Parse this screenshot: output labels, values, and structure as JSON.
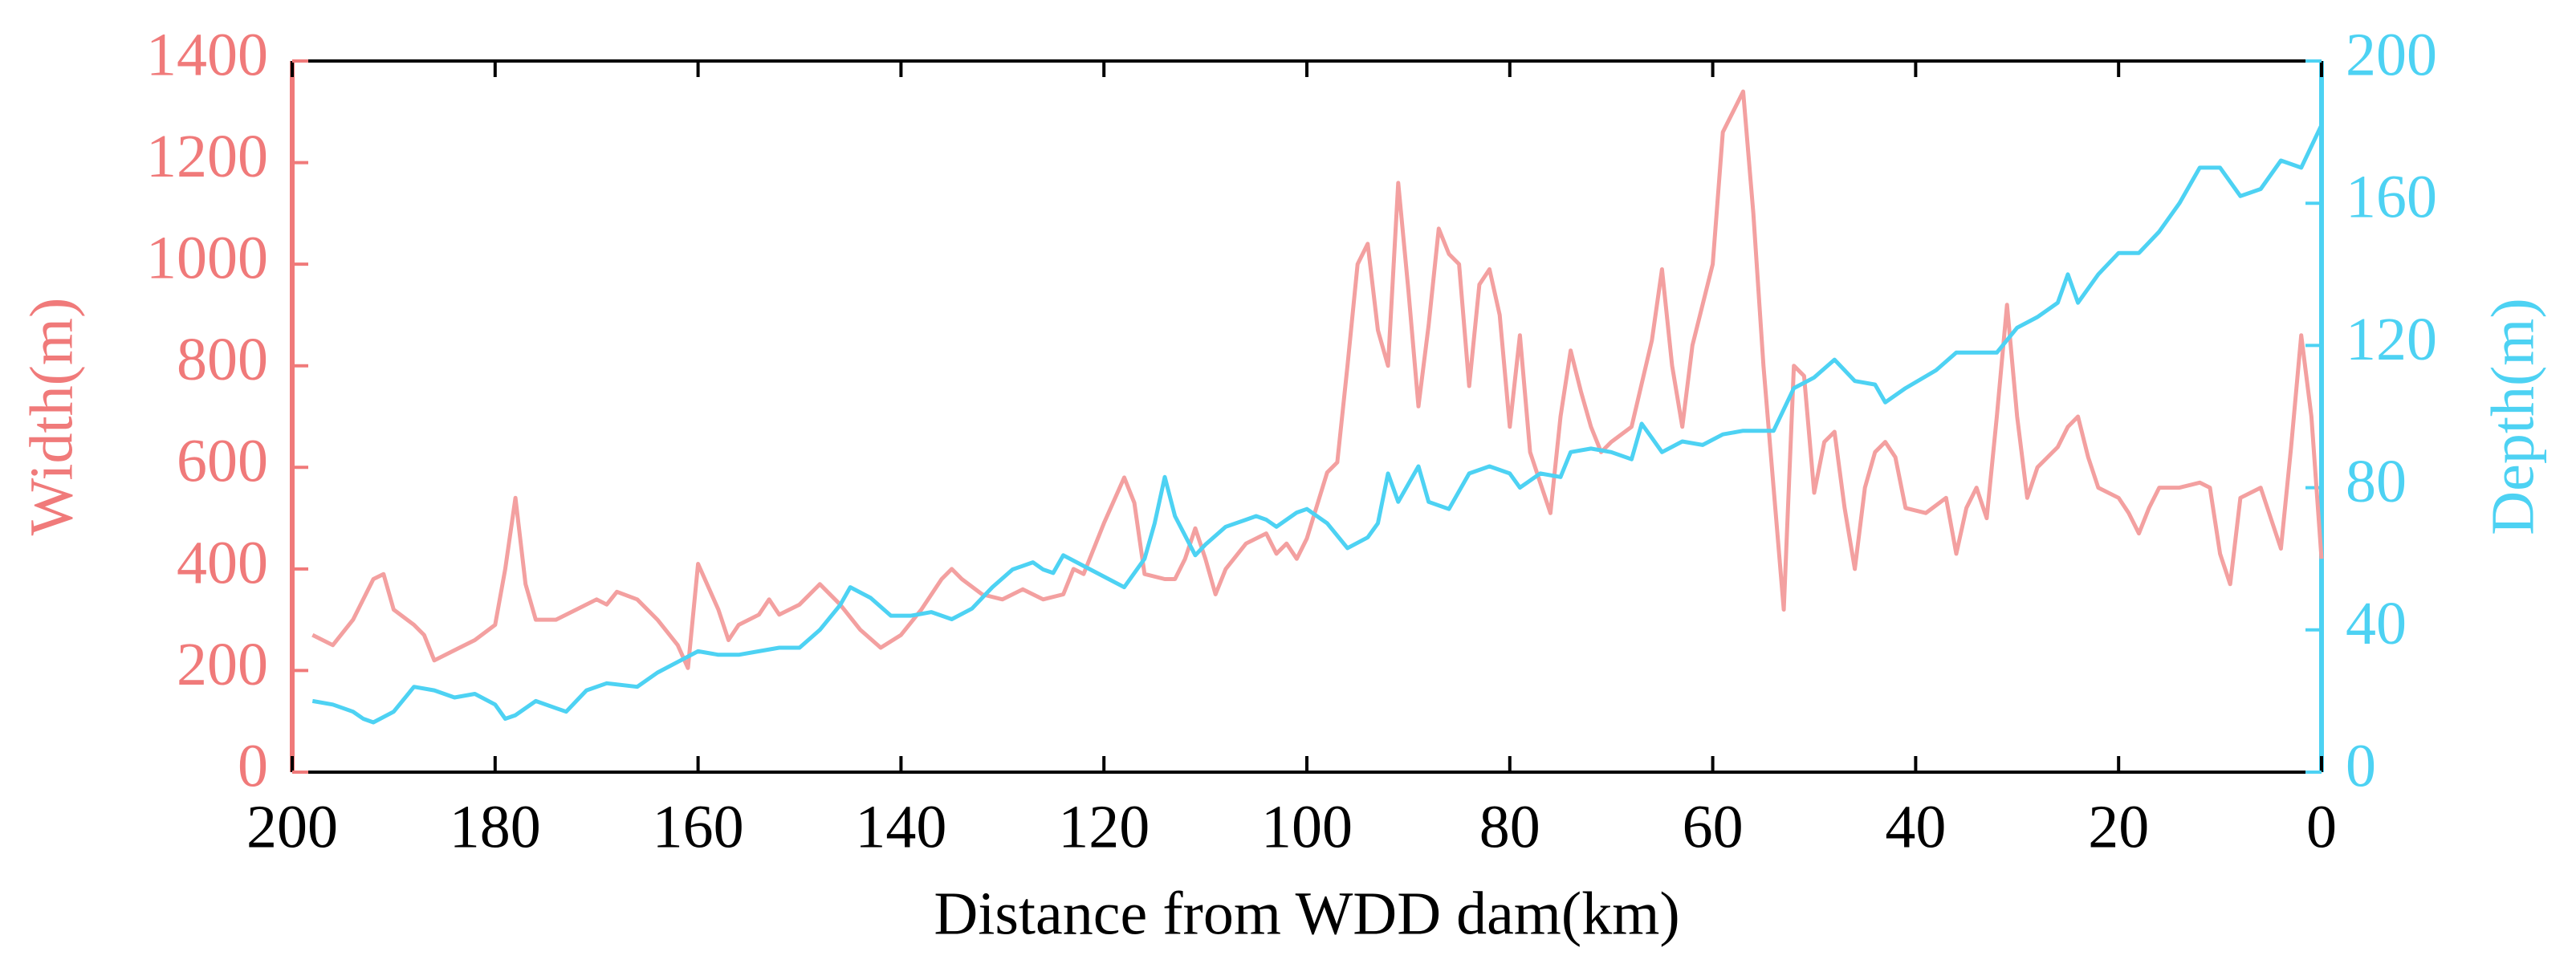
{
  "chart_data": {
    "type": "line",
    "xlabel": "Distance from WDD dam(km)",
    "ylabel": "Width(m)",
    "y2label": "Depth(m)",
    "xlim": [
      200,
      0
    ],
    "xticks": [
      200,
      180,
      160,
      140,
      120,
      100,
      80,
      60,
      40,
      20,
      0
    ],
    "ylim": [
      0,
      1400
    ],
    "yticks": [
      0,
      200,
      400,
      600,
      800,
      1000,
      1200,
      1400
    ],
    "y2lim": [
      0,
      200
    ],
    "y2ticks": [
      0,
      40,
      80,
      120,
      160,
      200
    ],
    "ycolor": "#f07a7a",
    "y2color": "#4dd2f3",
    "grid": false,
    "series": [
      {
        "color": "#f3a0a0",
        "axis": "y",
        "x": [
          198,
          196,
          194,
          192,
          191,
          190,
          188,
          187,
          186,
          184,
          182,
          180,
          179,
          178,
          177,
          176,
          174,
          172,
          170,
          169,
          168,
          166,
          164,
          162,
          161,
          160,
          158,
          157,
          156,
          154,
          153,
          152,
          150,
          148,
          146,
          144,
          142,
          140,
          138,
          136,
          135,
          134,
          132,
          130,
          128,
          126,
          124,
          123,
          122,
          120,
          118,
          117,
          116,
          114,
          113,
          112,
          111,
          110,
          109,
          108,
          106,
          104,
          103,
          102,
          101,
          100,
          98,
          97,
          96,
          95,
          94,
          93,
          92,
          91,
          90,
          89,
          88,
          87,
          86,
          85,
          84,
          83,
          82,
          81,
          80,
          79,
          78,
          77,
          76,
          75,
          74,
          73,
          72,
          71,
          70,
          68,
          66,
          65,
          64,
          63,
          62,
          60,
          59,
          58,
          57,
          56,
          55,
          54,
          53,
          52,
          51,
          50,
          49,
          48,
          47,
          46,
          45,
          44,
          43,
          42,
          41,
          39,
          37,
          36,
          35,
          34,
          33,
          32,
          31,
          30,
          29,
          28,
          26,
          25,
          24,
          23,
          22,
          20,
          19,
          18,
          17,
          16,
          14,
          12,
          11,
          10,
          9,
          8,
          6,
          5,
          4,
          3,
          2,
          1,
          0
        ],
        "values": [
          270,
          250,
          300,
          380,
          390,
          320,
          290,
          270,
          220,
          240,
          260,
          290,
          400,
          540,
          370,
          300,
          300,
          320,
          340,
          330,
          355,
          340,
          300,
          250,
          205,
          410,
          320,
          260,
          290,
          310,
          340,
          310,
          330,
          370,
          330,
          280,
          245,
          270,
          320,
          380,
          400,
          380,
          350,
          340,
          360,
          340,
          350,
          400,
          390,
          490,
          580,
          530,
          390,
          380,
          380,
          420,
          480,
          420,
          350,
          400,
          450,
          470,
          430,
          450,
          420,
          460,
          590,
          610,
          800,
          1000,
          1040,
          870,
          800,
          1160,
          950,
          720,
          880,
          1070,
          1020,
          1000,
          760,
          960,
          990,
          900,
          680,
          860,
          630,
          570,
          510,
          700,
          830,
          750,
          680,
          630,
          650,
          680,
          850,
          990,
          800,
          680,
          840,
          1000,
          1260,
          1300,
          1340,
          1100,
          800,
          560,
          320,
          800,
          780,
          550,
          650,
          670,
          520,
          400,
          560,
          630,
          650,
          620,
          520,
          510,
          540,
          430,
          520,
          560,
          500,
          700,
          920,
          700,
          540,
          600,
          640,
          680,
          700,
          620,
          560,
          540,
          510,
          470,
          520,
          560,
          560,
          570,
          560,
          430,
          370,
          540,
          560,
          500,
          440,
          640,
          860,
          700,
          420
        ]
      },
      {
        "color": "#4dd2f3",
        "axis": "y2",
        "x": [
          198,
          196,
          194,
          193,
          192,
          190,
          188,
          186,
          184,
          182,
          180,
          179,
          178,
          176,
          174,
          173,
          171,
          169,
          166,
          164,
          162,
          160,
          158,
          156,
          154,
          152,
          150,
          148,
          146,
          145,
          143,
          141,
          139,
          137,
          135,
          133,
          131,
          129,
          127,
          126,
          125,
          124,
          122,
          120,
          118,
          116,
          115,
          114,
          113,
          111,
          110,
          108,
          106,
          105,
          104,
          103,
          101,
          100,
          98,
          96,
          94,
          93,
          92,
          91,
          89,
          88,
          86,
          84,
          82,
          80,
          79,
          77,
          75,
          74,
          72,
          70,
          68,
          67,
          66,
          65,
          63,
          61,
          59,
          57,
          54,
          52,
          50,
          48,
          46,
          44,
          43,
          41,
          38,
          36,
          34,
          32,
          30,
          28,
          26,
          25,
          24,
          22,
          20,
          18,
          16,
          14,
          12,
          10,
          8,
          6,
          4,
          2,
          0
        ],
        "values": [
          20,
          19,
          17,
          15,
          14,
          17,
          24,
          23,
          21,
          22,
          19,
          15,
          16,
          20,
          18,
          17,
          23,
          25,
          24,
          28,
          31,
          34,
          33,
          33,
          34,
          35,
          35,
          40,
          47,
          52,
          49,
          44,
          44,
          45,
          43,
          46,
          52,
          57,
          59,
          57,
          56,
          61,
          58,
          55,
          52,
          60,
          70,
          83,
          72,
          61,
          64,
          69,
          71,
          72,
          71,
          69,
          73,
          74,
          70,
          63,
          66,
          70,
          84,
          76,
          86,
          76,
          74,
          84,
          86,
          84,
          80,
          84,
          83,
          90,
          91,
          90,
          88,
          98,
          94,
          90,
          93,
          92,
          95,
          96,
          96,
          108,
          111,
          116,
          110,
          109,
          104,
          108,
          113,
          118,
          118,
          118,
          125,
          128,
          132,
          140,
          132,
          140,
          146,
          146,
          152,
          160,
          170,
          170,
          162,
          164,
          172,
          170,
          182
        ]
      }
    ]
  }
}
